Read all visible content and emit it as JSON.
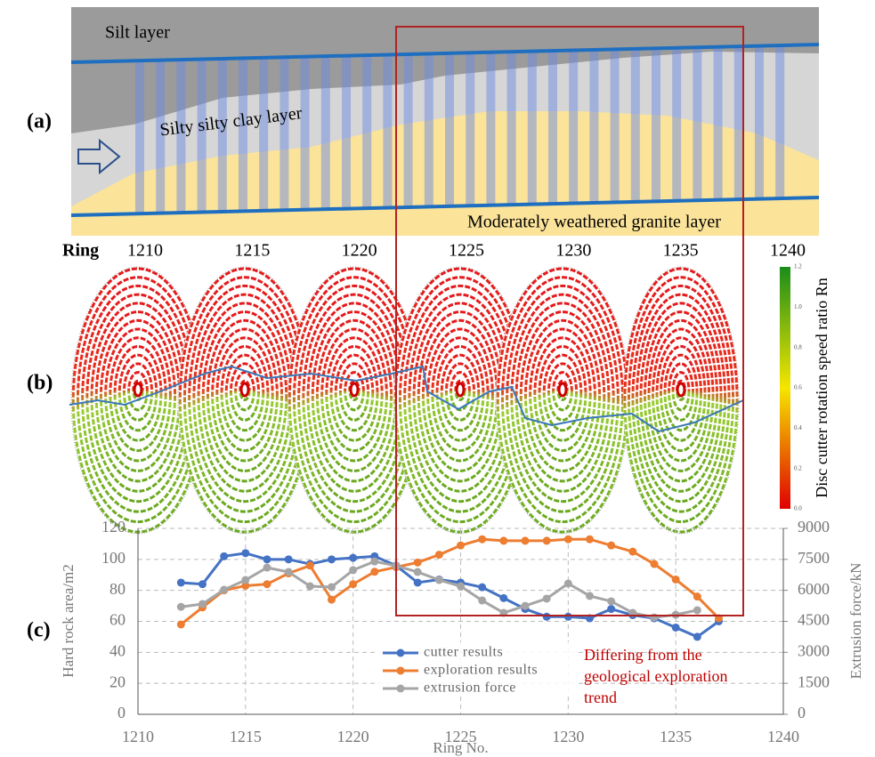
{
  "panel_labels": [
    "(a)",
    "(b)",
    "(c)"
  ],
  "geology": {
    "layers": [
      "Silt layer",
      "Silty silty clay layer",
      "Moderately weathered granite layer"
    ]
  },
  "ring_map": {
    "label": "Ring",
    "xlim": [
      1210,
      1240
    ],
    "xticks": [
      1210,
      1215,
      1220,
      1225,
      1230,
      1235,
      1240
    ],
    "colorbar": {
      "label": "Disc cutter rotation speed ratio Rn",
      "range": [
        0,
        1.2
      ],
      "ticks": [
        {
          "value": 0,
          "label": "0.0"
        },
        0.2,
        0.4,
        0.6,
        0.8,
        {
          "value": 1,
          "label": "1.0"
        },
        1.2
      ]
    }
  },
  "chart_data": {
    "type": "line",
    "x_label": "Ring No.",
    "y_label": "Hard rock area/m2",
    "y2_label": "Extrusion force/kN",
    "x": [
      1212,
      1213,
      1214,
      1215,
      1216,
      1217,
      1218,
      1219,
      1220,
      1221,
      1222,
      1223,
      1224,
      1225,
      1226,
      1227,
      1228,
      1229,
      1230,
      1231,
      1232,
      1233,
      1234,
      1235,
      1236,
      1237
    ],
    "xlim": [
      1210,
      1240
    ],
    "xticks": [
      1210,
      1215,
      1220,
      1225,
      1230,
      1235,
      1240
    ],
    "ylim": [
      0,
      120
    ],
    "yticks": [
      0,
      20,
      40,
      60,
      80,
      100,
      120
    ],
    "y2lim": [
      0,
      9000
    ],
    "y2ticks": [
      0,
      1500,
      3000,
      4500,
      6000,
      7500,
      9000
    ],
    "grid": true,
    "series": [
      {
        "name": "cutter results",
        "color": "#4472c4",
        "values": [
          85,
          84,
          102,
          104,
          100,
          100,
          97,
          100,
          101,
          102,
          96,
          85,
          87,
          85,
          82,
          75,
          68,
          63,
          63,
          62,
          68,
          64,
          62,
          56,
          50,
          60
        ]
      },
      {
        "name": "exploration results",
        "color": "#ed7d31",
        "values": [
          58,
          69,
          80,
          83,
          84,
          91,
          96,
          74,
          84,
          92,
          95,
          98,
          103,
          109,
          113,
          112,
          112,
          112,
          113,
          113,
          109,
          105,
          97,
          87,
          76,
          62
        ]
      },
      {
        "name": "extrusion force",
        "color": "#a5a5a5",
        "axis": "y2",
        "values": [
          5200,
          5340,
          6030,
          6500,
          7100,
          6890,
          6200,
          6160,
          6980,
          7400,
          7190,
          6890,
          6500,
          6200,
          5510,
          4910,
          5250,
          5600,
          6330,
          5730,
          5470,
          4910,
          4690,
          4820,
          5040,
          null
        ]
      }
    ],
    "annotation": [
      "Differing from the",
      "geological exploration",
      "trend"
    ]
  }
}
